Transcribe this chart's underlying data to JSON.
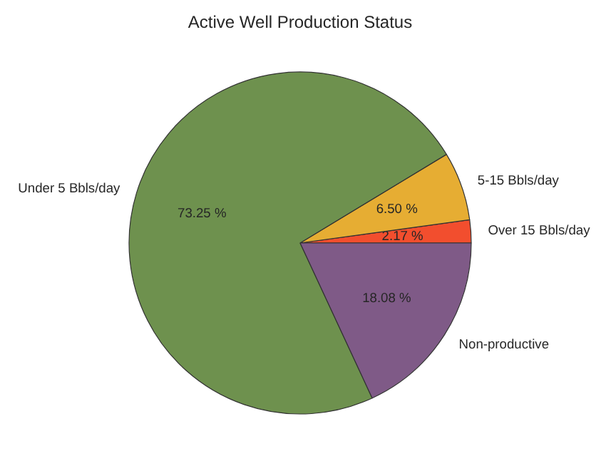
{
  "chart_data": {
    "type": "pie",
    "title": "Active Well Production Status",
    "categories": [
      "Over 15 Bbls/day",
      "5-15 Bbls/day",
      "Under 5 Bbls/day",
      "Non-productive"
    ],
    "values": [
      2.17,
      6.5,
      73.25,
      18.08
    ],
    "colors": [
      "#f24e2e",
      "#e6ad33",
      "#6e914e",
      "#7f5a87"
    ],
    "value_labels": [
      "2.17 %",
      "6.50 %",
      "73.25 %",
      "18.08 %"
    ]
  }
}
